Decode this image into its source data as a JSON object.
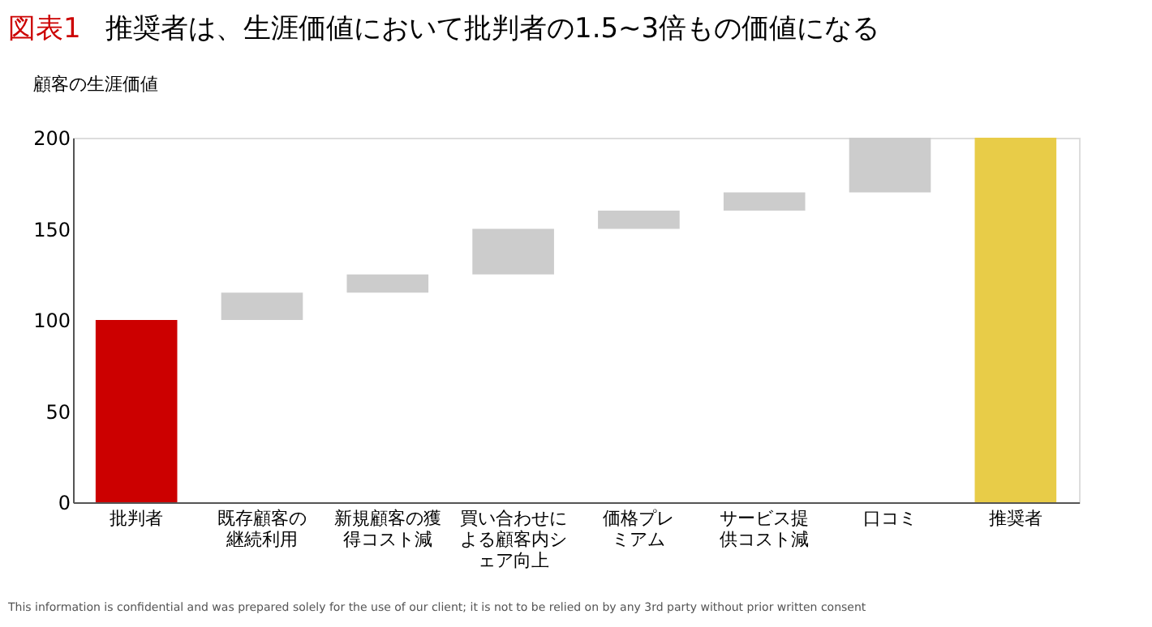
{
  "chart_data": {
    "type": "bar",
    "title": "推奨者は、生涯価値において批判者の1.5~3倍もの価値になる",
    "ylabel": "顧客の生涯価値",
    "categories": [
      "批判者",
      "既存顧客の継続利用",
      "新規顧客の獲得コスト減",
      "買い合わせによる顧客内シェア向上",
      "価格プレミアム",
      "サービス提供コスト減",
      "口コミ",
      "推奨者"
    ],
    "values": [
      100,
      15,
      10,
      25,
      10,
      10,
      30,
      200
    ],
    "base": [
      0,
      100,
      115,
      125,
      150,
      160,
      170,
      0
    ],
    "colors": [
      "#cc0000",
      "#cccccc",
      "#cccccc",
      "#cccccc",
      "#cccccc",
      "#cccccc",
      "#cccccc",
      "#e8cc48"
    ],
    "ylim": [
      0,
      200
    ],
    "yticks": [
      0,
      50,
      100,
      150,
      200
    ],
    "grid": false,
    "annotations": [
      "図表1",
      "This information is confidential and was prepared solely for the use of our client; it is not to be relied on by any 3rd party without prior written consent"
    ]
  }
}
